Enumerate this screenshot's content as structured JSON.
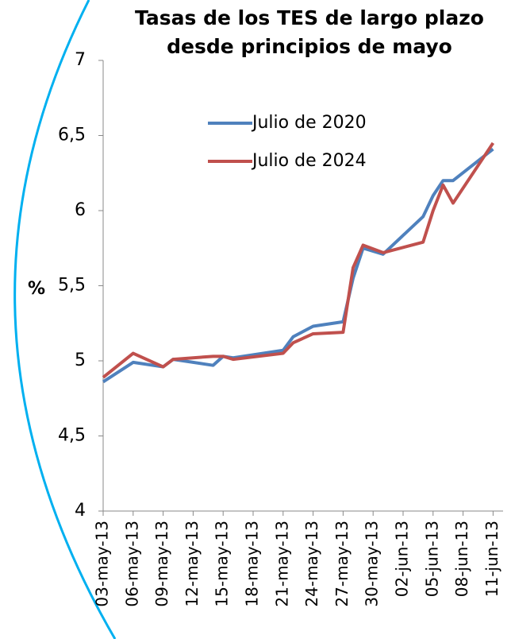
{
  "chart_data": {
    "type": "line",
    "title": [
      "Tasas de los TES de largo plazo",
      "desde principios de mayo"
    ],
    "ylabel": "%",
    "x": [
      "2013-05-03",
      "2013-05-06",
      "2013-05-09",
      "2013-05-10",
      "2013-05-14",
      "2013-05-15",
      "2013-05-16",
      "2013-05-21",
      "2013-05-22",
      "2013-05-24",
      "2013-05-27",
      "2013-05-28",
      "2013-05-29",
      "2013-05-31",
      "2013-06-04",
      "2013-06-05",
      "2013-06-06",
      "2013-06-07",
      "2013-06-11"
    ],
    "series": [
      {
        "name": "Julio de 2020",
        "color": "#4f81bd",
        "values": [
          4.86,
          4.99,
          4.96,
          5.01,
          4.97,
          5.03,
          5.02,
          5.07,
          5.16,
          5.23,
          5.26,
          5.55,
          5.75,
          5.71,
          5.96,
          6.1,
          6.2,
          6.2,
          6.41
        ]
      },
      {
        "name": "Julio de 2024",
        "color": "#c0504d",
        "values": [
          4.89,
          5.05,
          4.96,
          5.01,
          5.03,
          5.03,
          5.01,
          5.05,
          5.12,
          5.18,
          5.19,
          5.62,
          5.77,
          5.72,
          5.79,
          6.0,
          6.17,
          6.05,
          6.45
        ]
      }
    ],
    "xlim": [
      "2013-05-03",
      "2013-06-12"
    ],
    "xticks": [
      {
        "value": "2013-05-03",
        "label": "03-may-13"
      },
      {
        "value": "2013-05-06",
        "label": "06-may-13"
      },
      {
        "value": "2013-05-09",
        "label": "09-may-13"
      },
      {
        "value": "2013-05-12",
        "label": "12-may-13"
      },
      {
        "value": "2013-05-15",
        "label": "15-may-13"
      },
      {
        "value": "2013-05-18",
        "label": "18-may-13"
      },
      {
        "value": "2013-05-21",
        "label": "21-may-13"
      },
      {
        "value": "2013-05-24",
        "label": "24-may-13"
      },
      {
        "value": "2013-05-27",
        "label": "27-may-13"
      },
      {
        "value": "2013-05-30",
        "label": "30-may-13"
      },
      {
        "value": "2013-06-02",
        "label": "02-jun-13"
      },
      {
        "value": "2013-06-05",
        "label": "05-jun-13"
      },
      {
        "value": "2013-06-08",
        "label": "08-jun-13"
      },
      {
        "value": "2013-06-11",
        "label": "11-jun-13"
      }
    ],
    "ylim": [
      4,
      7
    ],
    "yticks": [
      4,
      {
        "value": 4.5,
        "label": "4,5"
      },
      5,
      {
        "value": 5.5,
        "label": "5,5"
      },
      6,
      {
        "value": 6.5,
        "label": "6,5"
      },
      7
    ],
    "grid": false,
    "legend": "top-center"
  }
}
